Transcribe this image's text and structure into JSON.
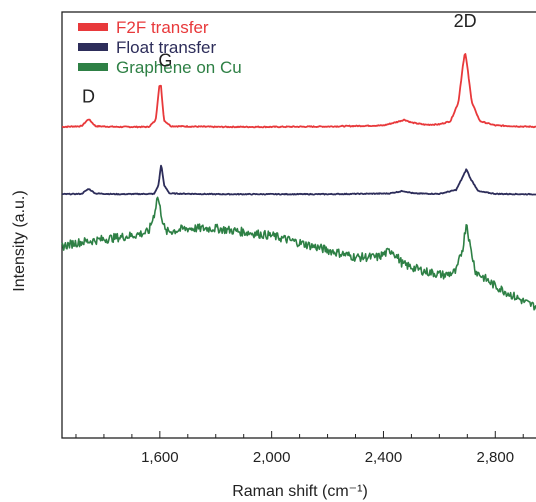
{
  "chart_data": {
    "type": "line",
    "title": "",
    "xlabel": "Raman shift (cm⁻¹)",
    "ylabel": "Intensity (a.u.)",
    "xlim": [
      1250,
      2960
    ],
    "ylim": [
      0,
      1
    ],
    "xticks": [
      1600,
      2000,
      2400,
      2800
    ],
    "xtick_labels": [
      "1,600",
      "2,000",
      "2,400",
      "2,800"
    ],
    "minor_tick_step": 100,
    "y_ticks_shown": false,
    "grid": false,
    "legend_position": "top-left",
    "series": [
      {
        "name": "F2F transfer",
        "color": "#e8393b",
        "points": [
          [
            1250,
            0.792
          ],
          [
            1320,
            0.794
          ],
          [
            1345,
            0.814
          ],
          [
            1370,
            0.794
          ],
          [
            1450,
            0.792
          ],
          [
            1560,
            0.792
          ],
          [
            1585,
            0.81
          ],
          [
            1598,
            0.905
          ],
          [
            1604,
            0.905
          ],
          [
            1615,
            0.81
          ],
          [
            1640,
            0.794
          ],
          [
            1800,
            0.792
          ],
          [
            2000,
            0.792
          ],
          [
            2200,
            0.793
          ],
          [
            2400,
            0.796
          ],
          [
            2450,
            0.806
          ],
          [
            2475,
            0.812
          ],
          [
            2500,
            0.804
          ],
          [
            2550,
            0.798
          ],
          [
            2600,
            0.799
          ],
          [
            2640,
            0.808
          ],
          [
            2668,
            0.86
          ],
          [
            2684,
            0.96
          ],
          [
            2692,
            1.0
          ],
          [
            2700,
            0.96
          ],
          [
            2716,
            0.86
          ],
          [
            2745,
            0.808
          ],
          [
            2800,
            0.796
          ],
          [
            2900,
            0.793
          ],
          [
            2960,
            0.792
          ]
        ]
      },
      {
        "name": "Float transfer",
        "color": "#2d2d5a",
        "points": [
          [
            1250,
            0.605
          ],
          [
            1320,
            0.606
          ],
          [
            1345,
            0.62
          ],
          [
            1370,
            0.607
          ],
          [
            1450,
            0.605
          ],
          [
            1580,
            0.606
          ],
          [
            1595,
            0.63
          ],
          [
            1605,
            0.69
          ],
          [
            1615,
            0.63
          ],
          [
            1635,
            0.607
          ],
          [
            1800,
            0.605
          ],
          [
            2000,
            0.605
          ],
          [
            2200,
            0.605
          ],
          [
            2420,
            0.607
          ],
          [
            2470,
            0.614
          ],
          [
            2510,
            0.607
          ],
          [
            2600,
            0.606
          ],
          [
            2660,
            0.617
          ],
          [
            2685,
            0.655
          ],
          [
            2697,
            0.675
          ],
          [
            2710,
            0.65
          ],
          [
            2740,
            0.613
          ],
          [
            2800,
            0.606
          ],
          [
            2900,
            0.605
          ],
          [
            2960,
            0.605
          ]
        ]
      },
      {
        "name": "Graphene on Cu",
        "color": "#2e8045",
        "points": [
          [
            1250,
            0.46
          ],
          [
            1300,
            0.47
          ],
          [
            1400,
            0.48
          ],
          [
            1500,
            0.49
          ],
          [
            1560,
            0.5
          ],
          [
            1580,
            0.55
          ],
          [
            1592,
            0.6
          ],
          [
            1605,
            0.55
          ],
          [
            1620,
            0.5
          ],
          [
            1700,
            0.51
          ],
          [
            1800,
            0.51
          ],
          [
            1900,
            0.5
          ],
          [
            2000,
            0.49
          ],
          [
            2100,
            0.47
          ],
          [
            2200,
            0.45
          ],
          [
            2300,
            0.43
          ],
          [
            2380,
            0.43
          ],
          [
            2430,
            0.45
          ],
          [
            2470,
            0.41
          ],
          [
            2550,
            0.39
          ],
          [
            2620,
            0.38
          ],
          [
            2660,
            0.39
          ],
          [
            2685,
            0.46
          ],
          [
            2697,
            0.53
          ],
          [
            2710,
            0.46
          ],
          [
            2730,
            0.39
          ],
          [
            2800,
            0.35
          ],
          [
            2870,
            0.32
          ],
          [
            2920,
            0.3
          ],
          [
            2960,
            0.29
          ]
        ]
      }
    ],
    "annotations": [
      {
        "label": "D",
        "x": 1345,
        "y": 0.86
      },
      {
        "label": "G",
        "x": 1620,
        "y": 0.96
      },
      {
        "label": "2D",
        "x": 2692,
        "y": 1.07
      }
    ]
  }
}
